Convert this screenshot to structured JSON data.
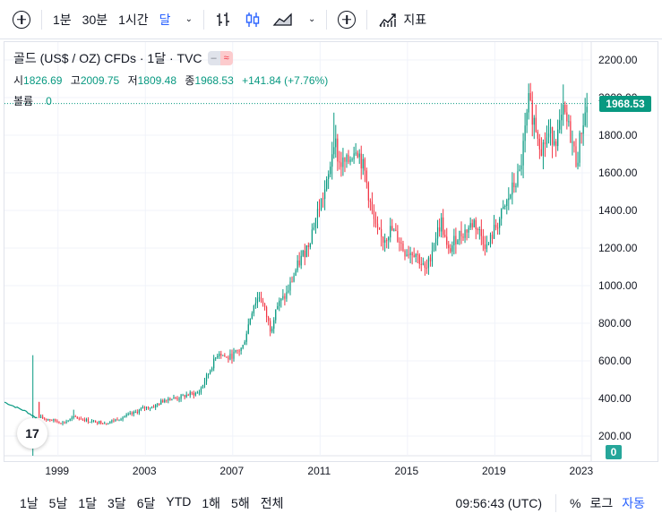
{
  "toolbar": {
    "intervals": [
      "1분",
      "30분",
      "1시간",
      "달"
    ],
    "active_interval": "달",
    "indicators_label": "지표"
  },
  "legend": {
    "title": "골드 (US$ / OZ) CFDs · 1달 · TVC",
    "pill_left": "‒",
    "pill_right": "≈",
    "open_label": "시",
    "open": "1826.69",
    "high_label": "고",
    "high": "2009.75",
    "low_label": "저",
    "low": "1809.48",
    "close_label": "종",
    "close": "1968.53",
    "change": "+141.84 (+7.76%)",
    "volume_label": "볼륨",
    "volume": "0"
  },
  "price_tag": "1968.53",
  "volume_tag": "0",
  "tv_logo": "17",
  "bottom": {
    "ranges": [
      "1날",
      "5날",
      "1달",
      "3달",
      "6달",
      "YTD",
      "1해",
      "5해",
      "전체"
    ],
    "time": "09:56:43 (UTC)",
    "percent": "%",
    "log": "로그",
    "auto": "자동"
  },
  "colors": {
    "up": "#089981",
    "down": "#f23645",
    "accent": "#2962ff"
  },
  "chart_data": {
    "type": "candlestick",
    "symbol": "골드 (US$ / OZ) CFDs",
    "y_ticks": [
      "2200.00",
      "2000.00",
      "1800.00",
      "1600.00",
      "1400.00",
      "1200.00",
      "1000.00",
      "800.00",
      "600.00",
      "400.00",
      "200.00"
    ],
    "x_ticks": [
      "1999",
      "2003",
      "2007",
      "2011",
      "2015",
      "2019",
      "2023"
    ],
    "ylim": [
      200,
      2200
    ],
    "xlim": [
      1996.6,
      2023.3
    ],
    "grid": true,
    "last_price": 1968.53,
    "anchors": [
      [
        1996.6,
        380
      ],
      [
        1997.0,
        360
      ],
      [
        1997.6,
        330
      ],
      [
        1998.0,
        300
      ],
      [
        1998.6,
        290
      ],
      [
        1999.3,
        270
      ],
      [
        1999.8,
        300
      ],
      [
        2000.5,
        280
      ],
      [
        2001.3,
        270
      ],
      [
        2002.0,
        300
      ],
      [
        2002.5,
        320
      ],
      [
        2003.0,
        350
      ],
      [
        2003.5,
        360
      ],
      [
        2004.0,
        400
      ],
      [
        2004.5,
        400
      ],
      [
        2005.0,
        420
      ],
      [
        2005.5,
        430
      ],
      [
        2006.0,
        550
      ],
      [
        2006.4,
        650
      ],
      [
        2006.8,
        610
      ],
      [
        2007.5,
        670
      ],
      [
        2008.0,
        900
      ],
      [
        2008.3,
        950
      ],
      [
        2008.8,
        760
      ],
      [
        2009.0,
        880
      ],
      [
        2009.5,
        950
      ],
      [
        2010.0,
        1100
      ],
      [
        2010.5,
        1220
      ],
      [
        2010.9,
        1380
      ],
      [
        2011.4,
        1550
      ],
      [
        2011.7,
        1800
      ],
      [
        2011.9,
        1650
      ],
      [
        2012.3,
        1650
      ],
      [
        2012.7,
        1750
      ],
      [
        2013.1,
        1600
      ],
      [
        2013.4,
        1400
      ],
      [
        2013.6,
        1300
      ],
      [
        2013.9,
        1240
      ],
      [
        2014.3,
        1300
      ],
      [
        2014.7,
        1240
      ],
      [
        2014.9,
        1180
      ],
      [
        2015.4,
        1180
      ],
      [
        2015.9,
        1070
      ],
      [
        2016.3,
        1250
      ],
      [
        2016.6,
        1340
      ],
      [
        2016.9,
        1170
      ],
      [
        2017.3,
        1260
      ],
      [
        2017.7,
        1290
      ],
      [
        2018.1,
        1340
      ],
      [
        2018.5,
        1250
      ],
      [
        2018.7,
        1200
      ],
      [
        2019.0,
        1290
      ],
      [
        2019.5,
        1410
      ],
      [
        2019.8,
        1500
      ],
      [
        2020.2,
        1600
      ],
      [
        2020.6,
        1970
      ],
      [
        2020.9,
        1860
      ],
      [
        2021.2,
        1730
      ],
      [
        2021.5,
        1800
      ],
      [
        2021.9,
        1790
      ],
      [
        2022.2,
        1920
      ],
      [
        2022.5,
        1810
      ],
      [
        2022.8,
        1650
      ],
      [
        2023.0,
        1830
      ],
      [
        2023.3,
        1968.53
      ]
    ]
  }
}
